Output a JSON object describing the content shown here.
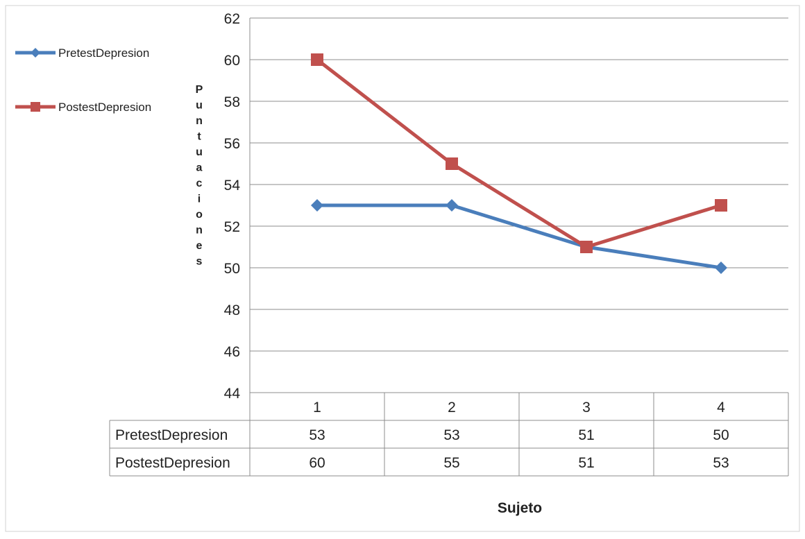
{
  "chart_data": {
    "type": "line",
    "categories": [
      "1",
      "2",
      "3",
      "4"
    ],
    "series": [
      {
        "name": "PretestDepresion",
        "values": [
          53,
          53,
          51,
          50
        ],
        "color": "#4a7ebb",
        "marker": "diamond"
      },
      {
        "name": "PostestDepresion",
        "values": [
          60,
          55,
          51,
          53
        ],
        "color": "#c0504d",
        "marker": "square"
      }
    ],
    "ylim": [
      44,
      62
    ],
    "yticks": [
      44,
      46,
      48,
      50,
      52,
      54,
      56,
      58,
      60,
      62
    ],
    "ylabel": "Puntuaciones",
    "xlabel": "Sujeto",
    "grid": true,
    "legend_position": "left",
    "data_table": true
  }
}
